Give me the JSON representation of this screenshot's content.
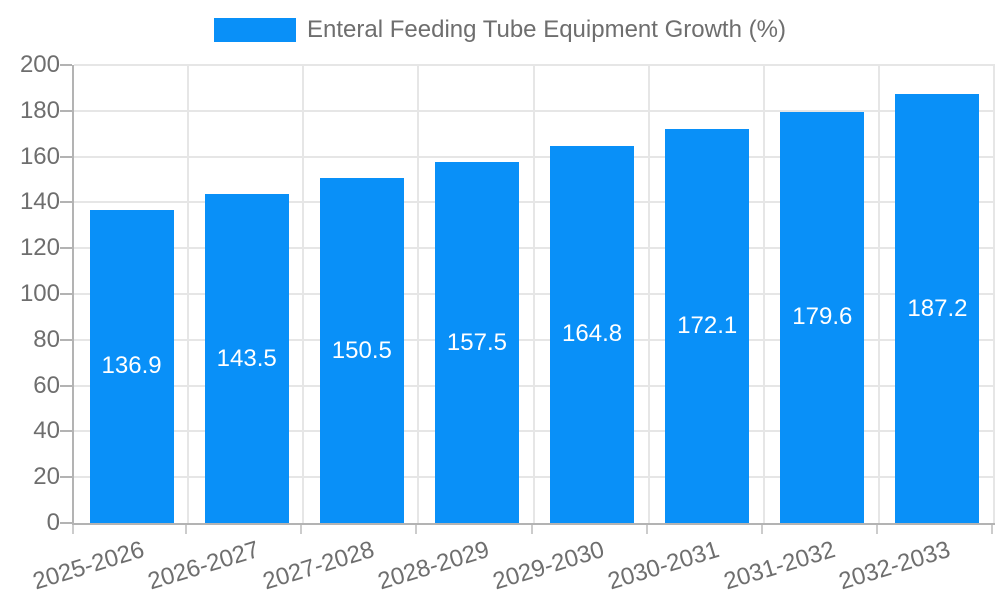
{
  "legend": {
    "label": "Enteral Feeding Tube Equipment Growth (%)"
  },
  "chart_data": {
    "type": "bar",
    "title": "Enteral Feeding Tube Equipment Growth (%)",
    "series_name": "Enteral Feeding Tube Equipment Growth (%)",
    "categories": [
      "2025-2026",
      "2026-2027",
      "2027-2028",
      "2028-2029",
      "2029-2030",
      "2030-2031",
      "2031-2032",
      "2032-2033"
    ],
    "values": [
      136.9,
      143.5,
      150.5,
      157.5,
      164.8,
      172.1,
      179.6,
      187.2
    ],
    "value_labels": [
      "136.9",
      "143.5",
      "150.5",
      "157.5",
      "164.8",
      "172.1",
      "179.6",
      "187.2"
    ],
    "xlabel": "",
    "ylabel": "",
    "ylim": [
      0,
      200
    ],
    "ytick_step": 20,
    "ytick_labels": [
      "0",
      "20",
      "40",
      "60",
      "80",
      "100",
      "120",
      "140",
      "160",
      "180",
      "200"
    ],
    "grid": true,
    "legend_position": "top",
    "bar_color": "#0990f8",
    "value_label_color": "#ffffff",
    "axis_text_color": "#6e6e6e",
    "grid_color": "#e6e6e6",
    "axis_border_color": "#b3b3b3",
    "background_color": "#ffffff"
  }
}
